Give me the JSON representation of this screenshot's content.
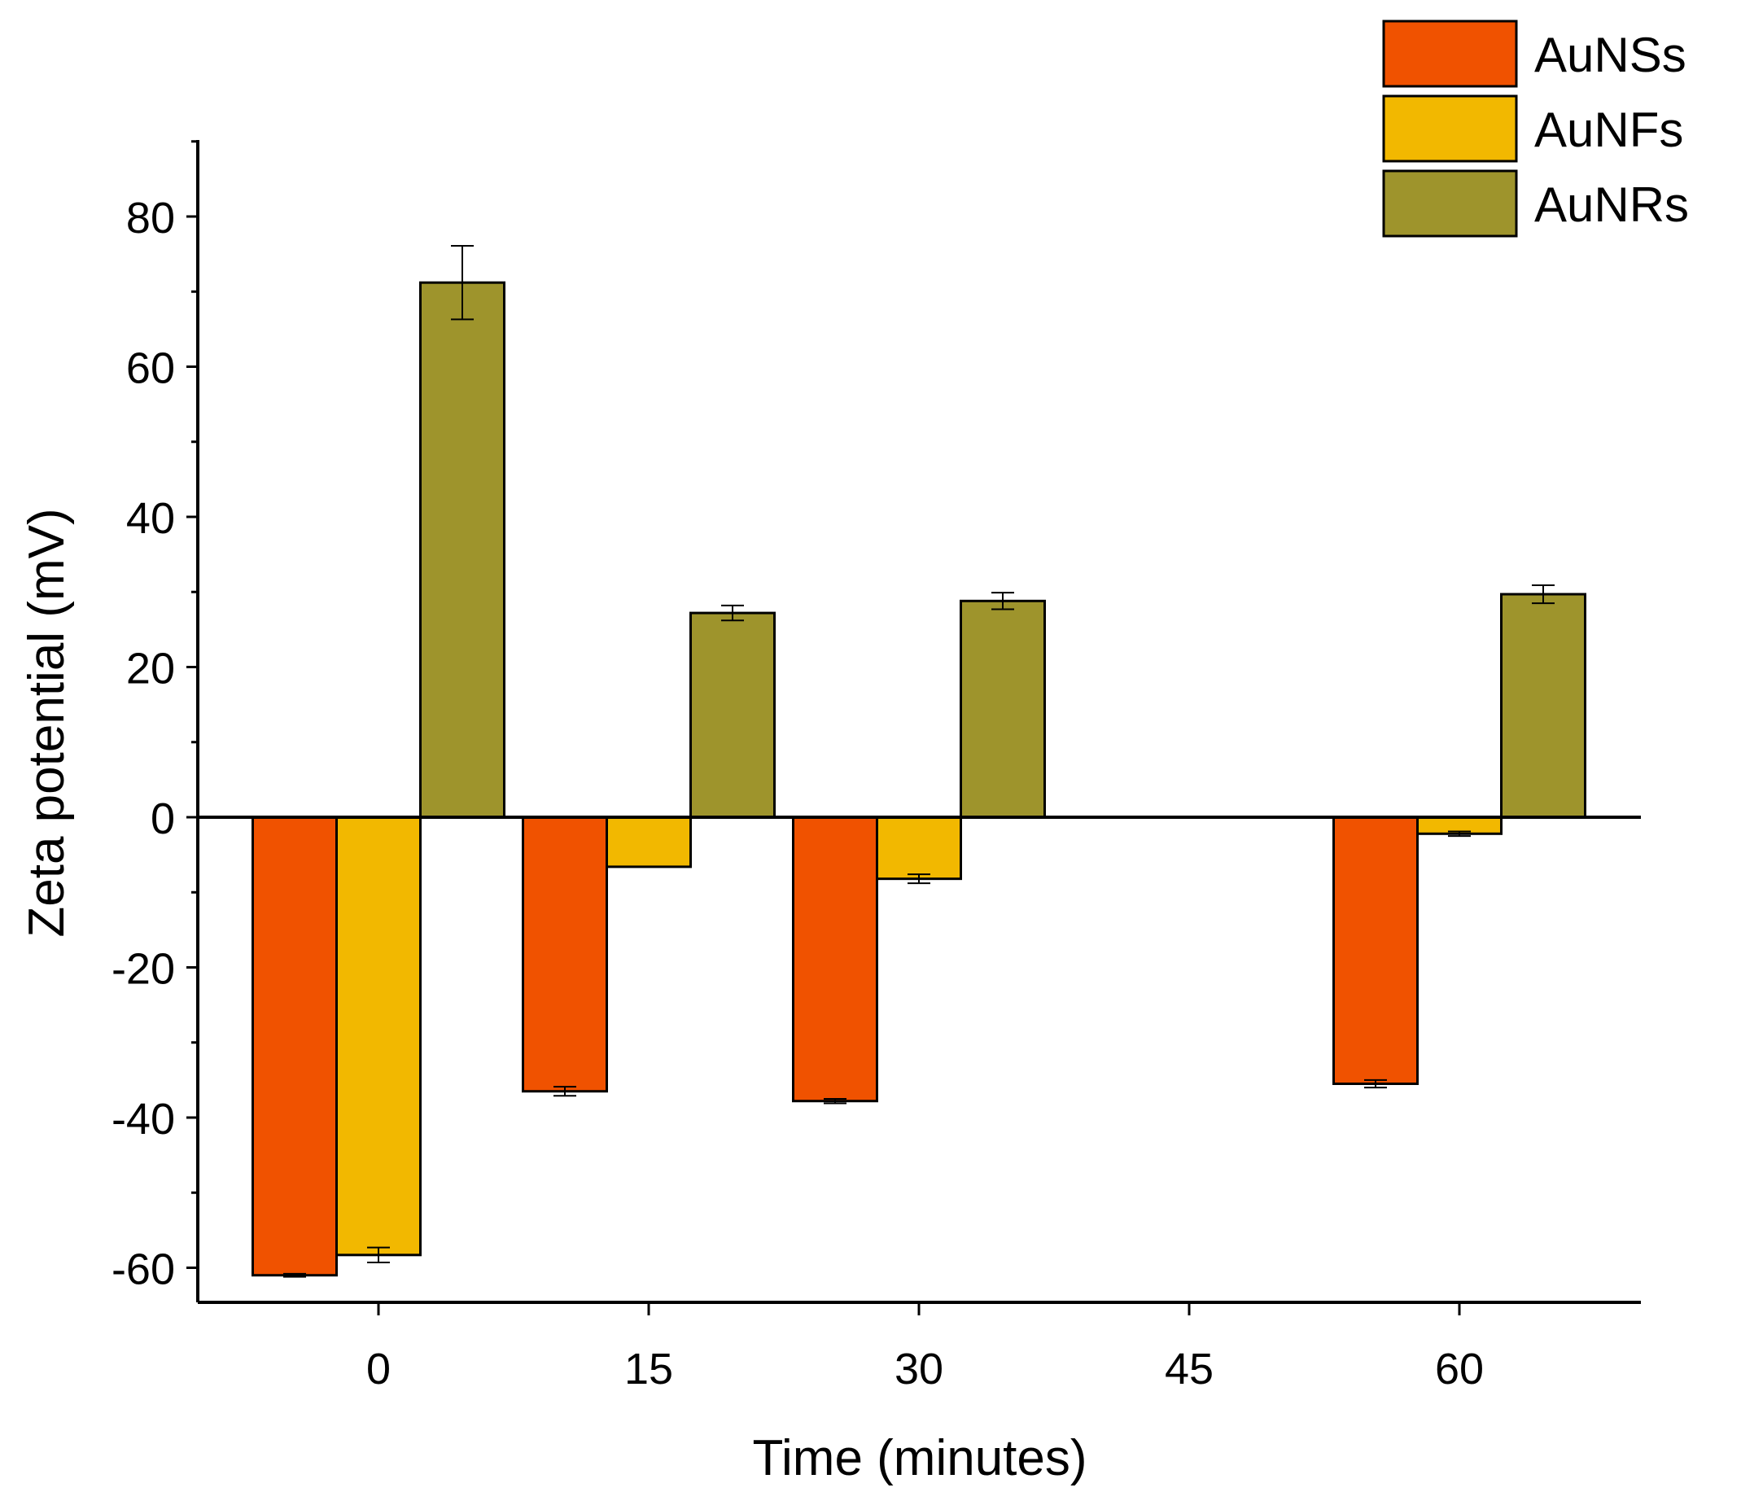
{
  "chart_data": {
    "type": "bar",
    "title": "",
    "xlabel": "Time (minutes)",
    "ylabel": "Zeta potential (mV)",
    "categories": [
      "0",
      "15",
      "30",
      "45",
      "60"
    ],
    "ylim": [
      -65,
      90
    ],
    "yticks": [
      "80",
      "60",
      "40",
      "20",
      "0",
      "-20",
      "-40",
      "-60"
    ],
    "ytick_values": [
      80,
      60,
      40,
      20,
      0,
      -20,
      -40,
      -60
    ],
    "legend_position": "top-right",
    "series": [
      {
        "name": "AuNSs",
        "color": "#f05200",
        "values": [
          -61.0,
          -36.5,
          -37.8,
          null,
          -35.5
        ],
        "errors": [
          0.2,
          0.6,
          0.3,
          null,
          0.5
        ]
      },
      {
        "name": "AuNFs",
        "color": "#f2b800",
        "values": [
          -58.3,
          -6.6,
          -8.2,
          null,
          -2.2
        ],
        "errors": [
          1.0,
          0.0,
          0.6,
          null,
          0.3
        ]
      },
      {
        "name": "AuNRs",
        "color": "#9e942c",
        "values": [
          71.2,
          27.2,
          28.8,
          null,
          29.7
        ],
        "errors": [
          4.9,
          1.0,
          1.1,
          null,
          1.2
        ]
      }
    ]
  }
}
